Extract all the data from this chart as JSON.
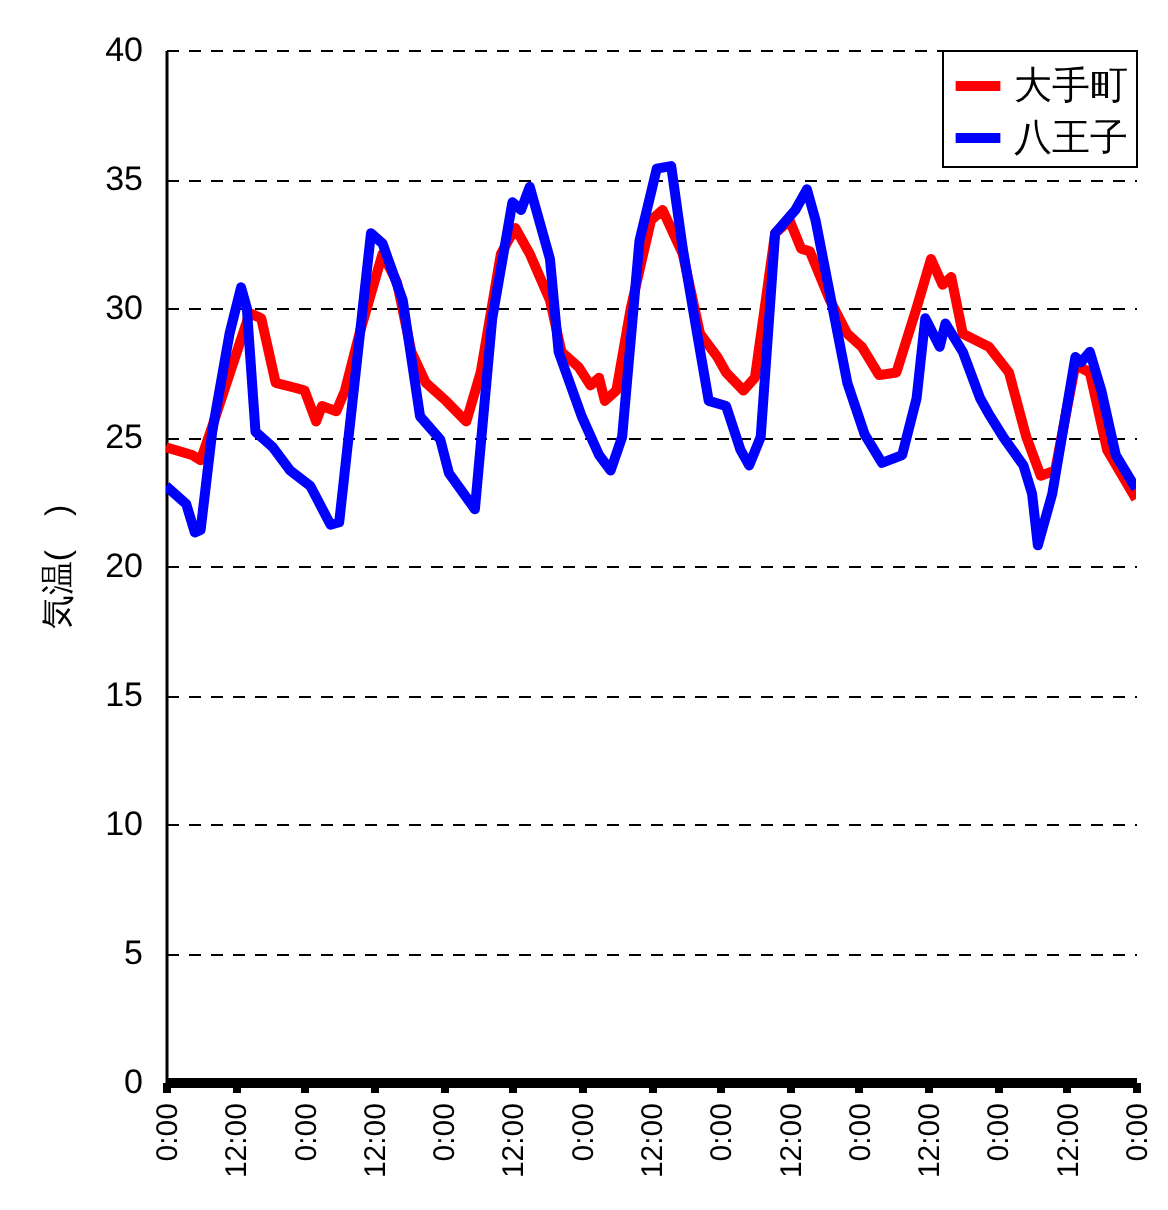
{
  "chart_data": {
    "type": "line",
    "ylabel": "気温(　)",
    "xlim": [
      "2000-01-01T00:00",
      "2000-01-08T00:00"
    ],
    "ylim": [
      0,
      40
    ],
    "yticks": [
      0,
      5,
      10,
      15,
      20,
      25,
      30,
      35,
      40
    ],
    "xticks": [
      {
        "value": "2000-01-01T00:00",
        "label": "0:00"
      },
      {
        "value": "2000-01-01T12:00",
        "label": "12:00"
      },
      {
        "value": "2000-01-02T00:00",
        "label": "0:00"
      },
      {
        "value": "2000-01-02T12:00",
        "label": "12:00"
      },
      {
        "value": "2000-01-03T00:00",
        "label": "0:00"
      },
      {
        "value": "2000-01-03T12:00",
        "label": "12:00"
      },
      {
        "value": "2000-01-04T00:00",
        "label": "0:00"
      },
      {
        "value": "2000-01-04T12:00",
        "label": "12:00"
      },
      {
        "value": "2000-01-05T00:00",
        "label": "0:00"
      },
      {
        "value": "2000-01-05T12:00",
        "label": "12:00"
      },
      {
        "value": "2000-01-06T00:00",
        "label": "0:00"
      },
      {
        "value": "2000-01-06T12:00",
        "label": "12:00"
      },
      {
        "value": "2000-01-07T00:00",
        "label": "0:00"
      },
      {
        "value": "2000-01-07T12:00",
        "label": "12:00"
      },
      {
        "value": "2000-01-08T00:00",
        "label": "0:00"
      }
    ],
    "grid": "y",
    "legend": "top right",
    "marker": "none",
    "line_style": "solid",
    "series": [
      {
        "name": "大手町",
        "color": "#ff0000",
        "x": [
          "2000-01-01T00:00",
          "2000-01-01T04:30",
          "2000-01-01T06:00",
          "2000-01-01T08:00",
          "2000-01-01T10:30",
          "2000-01-01T14:30",
          "2000-01-01T16:30",
          "2000-01-01T19:00",
          "2000-01-01T22:30",
          "2000-01-02T00:00",
          "2000-01-02T02:00",
          "2000-01-02T03:00",
          "2000-01-02T05:30",
          "2000-01-02T07:00",
          "2000-01-02T09:30",
          "2000-01-02T13:30",
          "2000-01-02T16:00",
          "2000-01-02T18:30",
          "2000-01-02T21:00",
          "2000-01-03T00:30",
          "2000-01-03T04:00",
          "2000-01-03T06:30",
          "2000-01-03T10:00",
          "2000-01-03T12:30",
          "2000-01-03T15:00",
          "2000-01-03T18:30",
          "2000-01-03T20:30",
          "2000-01-03T23:30",
          "2000-01-04T01:30",
          "2000-01-04T03:00",
          "2000-01-04T04:00",
          "2000-01-04T06:00",
          "2000-01-04T08:30",
          "2000-01-04T12:00",
          "2000-01-04T14:00",
          "2000-01-04T17:30",
          "2000-01-04T20:30",
          "2000-01-04T23:30",
          "2000-01-05T01:00",
          "2000-01-05T04:00",
          "2000-01-05T06:00",
          "2000-01-05T09:30",
          "2000-01-05T12:00",
          "2000-01-05T14:00",
          "2000-01-05T15:30",
          "2000-01-05T19:00",
          "2000-01-05T22:00",
          "2000-01-06T00:30",
          "2000-01-06T03:30",
          "2000-01-06T06:30",
          "2000-01-06T10:00",
          "2000-01-06T12:30",
          "2000-01-06T14:30",
          "2000-01-06T16:00",
          "2000-01-06T18:00",
          "2000-01-06T22:30",
          "2000-01-07T02:00",
          "2000-01-07T05:00",
          "2000-01-07T07:30",
          "2000-01-07T10:00",
          "2000-01-07T13:30",
          "2000-01-07T16:00",
          "2000-01-07T19:00",
          "2000-01-08T00:00"
        ],
        "values": [
          24.6,
          24.3,
          24.1,
          25.4,
          27.1,
          29.8,
          29.6,
          27.1,
          26.9,
          26.8,
          25.6,
          26.2,
          26.0,
          26.8,
          29.0,
          32.1,
          31.0,
          28.3,
          27.1,
          26.4,
          25.6,
          27.5,
          32.1,
          33.1,
          32.1,
          30.3,
          28.3,
          27.7,
          27.0,
          27.3,
          26.4,
          26.8,
          30.0,
          33.4,
          33.8,
          32.1,
          29.0,
          28.1,
          27.5,
          26.8,
          27.3,
          32.9,
          33.4,
          32.3,
          32.2,
          30.3,
          29.0,
          28.5,
          27.4,
          27.5,
          30.0,
          31.9,
          30.9,
          31.2,
          29.0,
          28.5,
          27.5,
          25.0,
          23.5,
          23.7,
          27.8,
          27.5,
          24.5,
          22.6
        ]
      },
      {
        "name": "八王子",
        "color": "#0000ff",
        "x": [
          "2000-01-01T00:00",
          "2000-01-01T03:30",
          "2000-01-01T05:00",
          "2000-01-01T06:00",
          "2000-01-01T08:00",
          "2000-01-01T11:00",
          "2000-01-01T13:00",
          "2000-01-01T14:00",
          "2000-01-01T15:30",
          "2000-01-01T18:30",
          "2000-01-01T21:30",
          "2000-01-02T01:00",
          "2000-01-02T04:30",
          "2000-01-02T06:00",
          "2000-01-02T09:00",
          "2000-01-02T11:30",
          "2000-01-02T13:30",
          "2000-01-02T17:00",
          "2000-01-02T20:00",
          "2000-01-02T23:30",
          "2000-01-03T01:00",
          "2000-01-03T05:30",
          "2000-01-03T08:30",
          "2000-01-03T12:00",
          "2000-01-03T13:30",
          "2000-01-03T15:00",
          "2000-01-03T18:30",
          "2000-01-03T20:00",
          "2000-01-04T00:00",
          "2000-01-04T03:00",
          "2000-01-04T05:00",
          "2000-01-04T07:00",
          "2000-01-04T10:00",
          "2000-01-04T13:00",
          "2000-01-04T15:30",
          "2000-01-04T17:30",
          "2000-01-04T20:00",
          "2000-01-04T22:00",
          "2000-01-05T01:00",
          "2000-01-05T03:30",
          "2000-01-05T05:00",
          "2000-01-05T07:00",
          "2000-01-05T09:30",
          "2000-01-05T13:00",
          "2000-01-05T15:00",
          "2000-01-05T16:30",
          "2000-01-05T18:30",
          "2000-01-05T22:00",
          "2000-01-06T01:00",
          "2000-01-06T04:00",
          "2000-01-06T07:30",
          "2000-01-06T10:00",
          "2000-01-06T11:30",
          "2000-01-06T14:00",
          "2000-01-06T15:00",
          "2000-01-06T18:00",
          "2000-01-06T21:00",
          "2000-01-06T22:30",
          "2000-01-07T01:00",
          "2000-01-07T04:30",
          "2000-01-07T06:00",
          "2000-01-07T07:00",
          "2000-01-07T09:30",
          "2000-01-07T13:30",
          "2000-01-07T14:30",
          "2000-01-07T16:00",
          "2000-01-07T18:00",
          "2000-01-07T20:30",
          "2000-01-08T00:00"
        ],
        "values": [
          23.1,
          22.4,
          21.3,
          21.4,
          25.2,
          29.0,
          30.8,
          30.0,
          25.2,
          24.6,
          23.7,
          23.1,
          21.6,
          21.7,
          27.8,
          32.9,
          32.5,
          30.3,
          25.8,
          24.9,
          23.6,
          22.2,
          29.6,
          34.1,
          33.8,
          34.7,
          31.9,
          28.3,
          25.8,
          24.3,
          23.7,
          25.0,
          32.6,
          35.4,
          35.5,
          32.3,
          29.0,
          26.4,
          26.2,
          24.5,
          23.9,
          25.0,
          32.9,
          33.8,
          34.6,
          33.4,
          31.1,
          27.1,
          25.1,
          24.0,
          24.3,
          26.5,
          29.6,
          28.5,
          29.4,
          28.3,
          26.5,
          25.9,
          25.0,
          23.9,
          22.8,
          20.8,
          22.8,
          28.1,
          27.9,
          28.3,
          26.8,
          24.3,
          23.0
        ]
      }
    ]
  }
}
